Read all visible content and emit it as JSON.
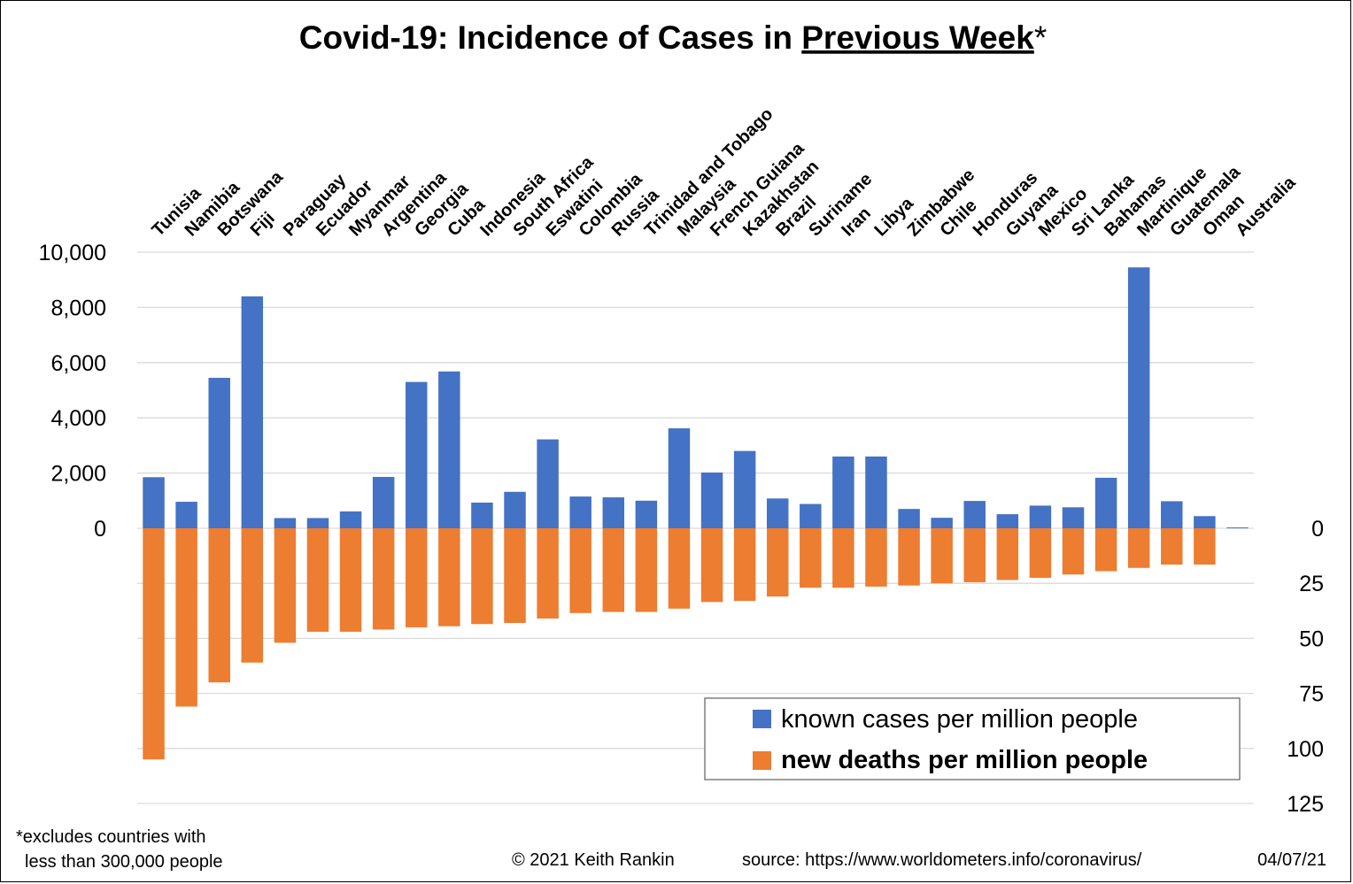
{
  "chart_data": {
    "type": "bar",
    "title": "Covid-19: Incidence of Cases in ",
    "title_underlined": "Previous Week",
    "title_suffix": "*",
    "categories": [
      "Tunisia",
      "Namibia",
      "Botswana",
      "Fiji",
      "Paraguay",
      "Ecuador",
      "Myanmar",
      "Argentina",
      "Georgia",
      "Cuba",
      "Indonesia",
      "South Africa",
      "Eswatini",
      "Colombia",
      "Russia",
      "Trinidad and Tobago",
      "Malaysia",
      "French Guiana",
      "Kazakhstan",
      "Brazil",
      "Suriname",
      "Iran",
      "Libya",
      "Zimbabwe",
      "Chile",
      "Honduras",
      "Guyana",
      "Mexico",
      "Sri Lanka",
      "Bahamas",
      "Martinique",
      "Guatemala",
      "Oman",
      "Australia"
    ],
    "series": [
      {
        "name": "known cases per million people",
        "axis": "left",
        "color": "#4472C4",
        "values": [
          1850,
          960,
          5450,
          8400,
          370,
          370,
          610,
          1860,
          5300,
          5680,
          930,
          1320,
          3220,
          1150,
          1120,
          1000,
          3620,
          2020,
          2800,
          1080,
          880,
          2600,
          2600,
          700,
          380,
          990,
          510,
          820,
          760,
          1830,
          9450,
          980,
          440,
          30
        ]
      },
      {
        "name": "new deaths per million people",
        "axis": "right",
        "color": "#ED7D31",
        "values": [
          105,
          81,
          70,
          61,
          52,
          47,
          47,
          46,
          45,
          44.5,
          43.5,
          43,
          41,
          38.5,
          38,
          38,
          36.5,
          33.5,
          33,
          31,
          27,
          27,
          26.5,
          26,
          25,
          24.5,
          23.5,
          22.5,
          21,
          19.5,
          18,
          16.5,
          16.5,
          0
        ]
      }
    ],
    "y_left": {
      "ylim": [
        0,
        10000
      ],
      "ticks": [
        "10,000",
        "8,000",
        "6,000",
        "4,000",
        "2,000",
        "0"
      ]
    },
    "y_right": {
      "ylim": [
        0,
        125
      ],
      "ticks": [
        "0",
        "25",
        "50",
        "75",
        "100",
        "125"
      ]
    },
    "grid": true,
    "legend_placement": "bottom-right"
  },
  "footnote": {
    "line1": "*excludes countries with",
    "line2": "less than 300,000 people"
  },
  "credit": "© 2021   Keith Rankin",
  "source": "source: https://www.worldometers.info/coronavirus/",
  "date": "04/07/21"
}
